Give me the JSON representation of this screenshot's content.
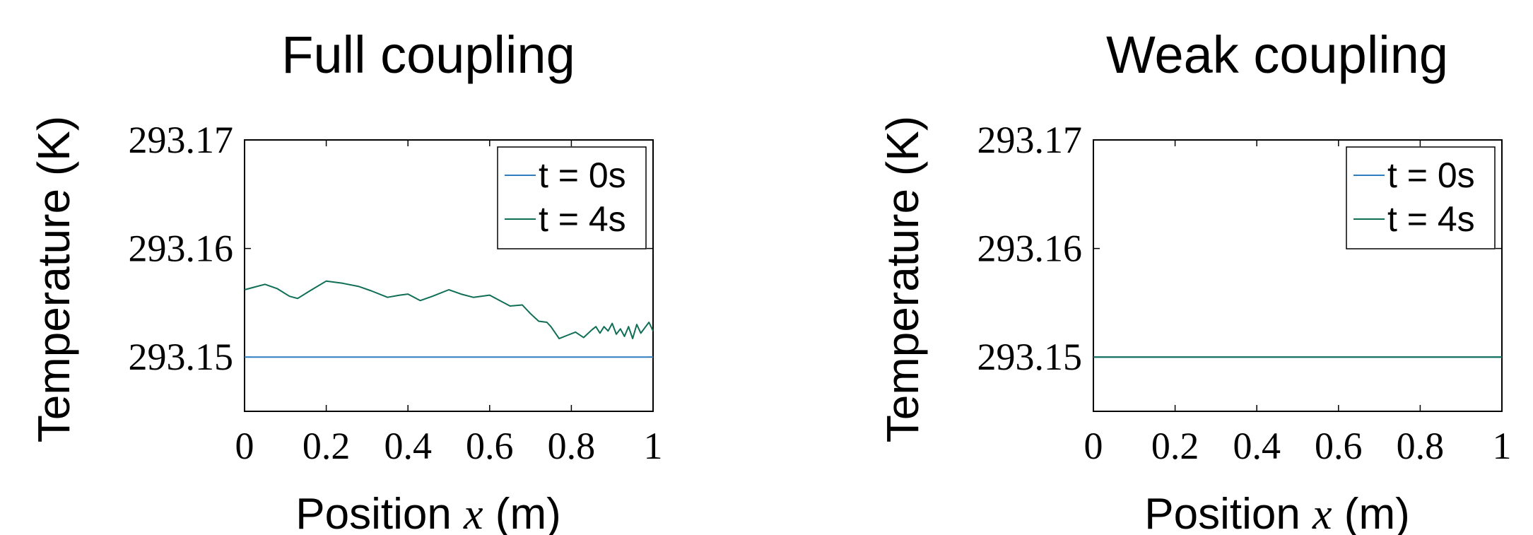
{
  "chart_data": [
    {
      "type": "line",
      "title": "Full coupling",
      "xlabel_prefix": "Position ",
      "xlabel_var": "x",
      "xlabel_suffix": " (m)",
      "ylabel": "Temperature (K)",
      "xlim": [
        0,
        1
      ],
      "ylim": [
        293.145,
        293.17
      ],
      "xticks": [
        0,
        0.2,
        0.4,
        0.6,
        0.8,
        1
      ],
      "xtick_labels": [
        "0",
        "0.2",
        "0.4",
        "0.6",
        "0.8",
        "1"
      ],
      "yticks": [
        293.15,
        293.16,
        293.17
      ],
      "ytick_labels": [
        "293.15",
        "293.16",
        "293.17"
      ],
      "grid": false,
      "legend_position": "top-right",
      "series": [
        {
          "name": "t = 0s",
          "color": "#2e7ebf",
          "x": [
            0,
            1
          ],
          "y": [
            293.15,
            293.15
          ]
        },
        {
          "name": "t = 4s",
          "color": "#0f6e55",
          "x": [
            0,
            0.02,
            0.05,
            0.08,
            0.11,
            0.13,
            0.16,
            0.2,
            0.24,
            0.28,
            0.31,
            0.35,
            0.38,
            0.4,
            0.43,
            0.46,
            0.5,
            0.53,
            0.56,
            0.6,
            0.63,
            0.65,
            0.68,
            0.7,
            0.72,
            0.74,
            0.75,
            0.77,
            0.79,
            0.81,
            0.83,
            0.85,
            0.86,
            0.87,
            0.88,
            0.89,
            0.9,
            0.91,
            0.92,
            0.93,
            0.94,
            0.95,
            0.96,
            0.97,
            0.98,
            0.99,
            1
          ],
          "y": [
            293.1562,
            293.1564,
            293.1567,
            293.1563,
            293.1556,
            293.1554,
            293.1561,
            293.157,
            293.1568,
            293.1565,
            293.1561,
            293.1555,
            293.1557,
            293.1558,
            293.1552,
            293.1556,
            293.1562,
            293.1558,
            293.1555,
            293.1557,
            293.1551,
            293.1547,
            293.1548,
            293.154,
            293.1533,
            293.1532,
            293.1528,
            293.1517,
            293.152,
            293.1523,
            293.1518,
            293.1525,
            293.1528,
            293.1522,
            293.1528,
            293.1524,
            293.1531,
            293.1521,
            293.1526,
            293.1519,
            293.1528,
            293.1517,
            293.153,
            293.1522,
            293.1527,
            293.1532,
            293.1524
          ]
        }
      ]
    },
    {
      "type": "line",
      "title": "Weak coupling",
      "xlabel_prefix": "Position ",
      "xlabel_var": "x",
      "xlabel_suffix": " (m)",
      "ylabel": "Temperature (K)",
      "xlim": [
        0,
        1
      ],
      "ylim": [
        293.145,
        293.17
      ],
      "xticks": [
        0,
        0.2,
        0.4,
        0.6,
        0.8,
        1
      ],
      "xtick_labels": [
        "0",
        "0.2",
        "0.4",
        "0.6",
        "0.8",
        "1"
      ],
      "yticks": [
        293.15,
        293.16,
        293.17
      ],
      "ytick_labels": [
        "293.15",
        "293.16",
        "293.17"
      ],
      "grid": false,
      "legend_position": "top-right",
      "series": [
        {
          "name": "t = 0s",
          "color": "#2e7ebf",
          "x": [
            0,
            1
          ],
          "y": [
            293.15,
            293.15
          ]
        },
        {
          "name": "t = 4s",
          "color": "#0f6e55",
          "x": [
            0,
            1
          ],
          "y": [
            293.15,
            293.15
          ]
        }
      ]
    }
  ]
}
